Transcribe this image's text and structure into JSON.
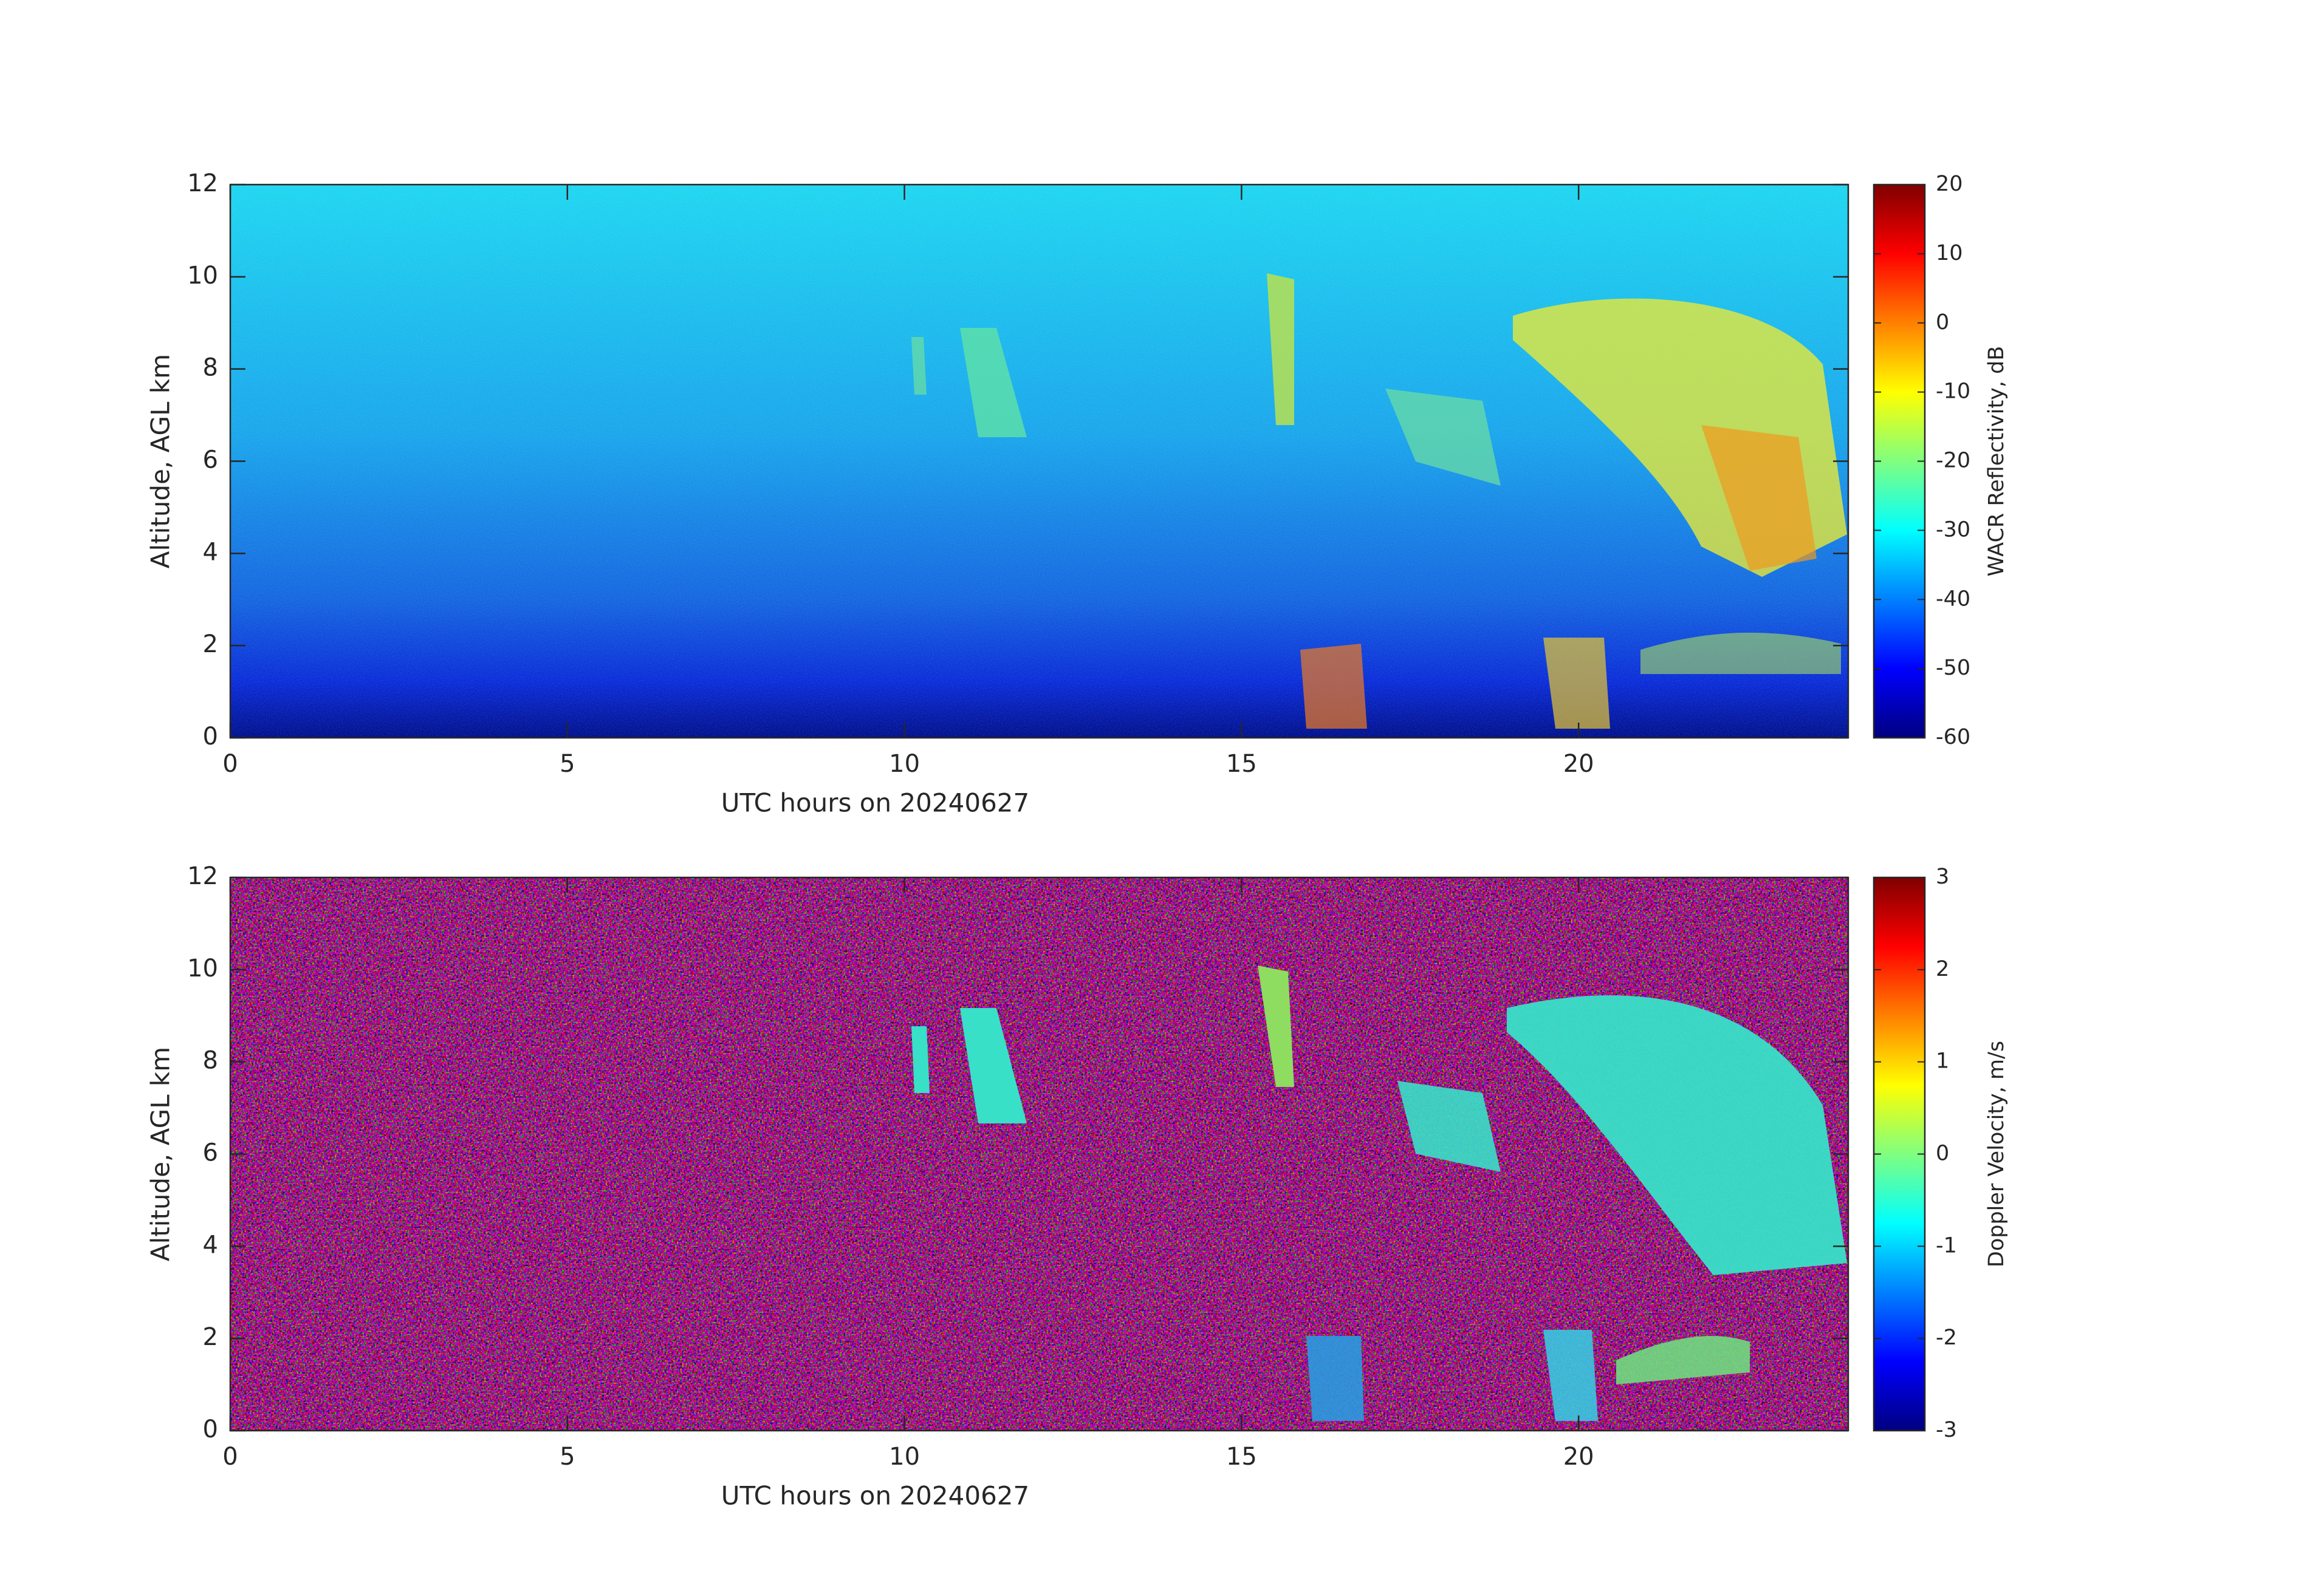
{
  "chart_data": [
    {
      "type": "heatmap",
      "xlabel": "UTC hours on 20240627",
      "ylabel": "Altitude, AGL km",
      "xlim": [
        0,
        24
      ],
      "xticks": [
        0,
        5,
        10,
        15,
        20
      ],
      "ylim": [
        0,
        12
      ],
      "yticks": [
        0,
        2,
        4,
        6,
        8,
        10,
        12
      ],
      "colorbar": {
        "label": "WACR Reflectivity, dB",
        "lim": [
          -60,
          20
        ],
        "ticks": [
          -60,
          -50,
          -40,
          -30,
          -20,
          -10,
          0,
          10,
          20
        ],
        "colormap": "jet"
      }
    },
    {
      "type": "heatmap",
      "xlabel": "UTC hours on 20240627",
      "ylabel": "Altitude, AGL km",
      "xlim": [
        0,
        24
      ],
      "xticks": [
        0,
        5,
        10,
        15,
        20
      ],
      "ylim": [
        0,
        12
      ],
      "yticks": [
        0,
        2,
        4,
        6,
        8,
        10,
        12
      ],
      "colorbar": {
        "label": "Doppler Velocity, m/s",
        "lim": [
          -3,
          3
        ],
        "ticks": [
          -3,
          -2,
          -1,
          0,
          1,
          2,
          3
        ],
        "colormap": "jet"
      }
    }
  ]
}
